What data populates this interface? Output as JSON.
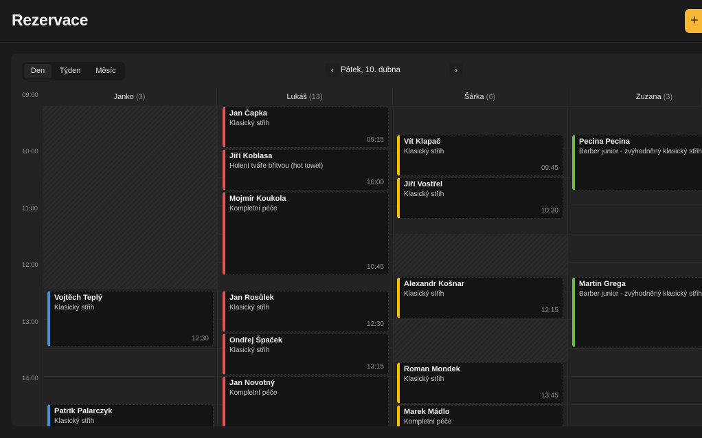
{
  "header": {
    "title": "Rezervace",
    "add_icon": "+"
  },
  "toolbar": {
    "views": [
      "Den",
      "Týden",
      "Měsíc"
    ],
    "active_view": "Den",
    "date": "Pátek, 10. dubna",
    "prev": "‹",
    "next": "›"
  },
  "columns": [
    {
      "name": "Janko",
      "count": "(3)"
    },
    {
      "name": "Lukáš",
      "count": "(13)"
    },
    {
      "name": "Šárka",
      "count": "(6)"
    },
    {
      "name": "Zuzana",
      "count": "(3)"
    }
  ],
  "times": [
    "09:00",
    "10:00",
    "11:00",
    "12:00",
    "13:00",
    "14:00"
  ],
  "colors": {
    "janko": "#4a90d9",
    "lukas": "#e05555",
    "sarka": "#f5c000",
    "zuzana": "#6cb84a",
    "accent": "#f5b731"
  },
  "events": [
    {
      "name": "Jan Čapka",
      "service": "Klasický střih",
      "time": "09:15"
    },
    {
      "name": "Jiří Koblasa",
      "service": "Holení tváře břitvou (hot towel)",
      "time": "10:00"
    },
    {
      "name": "Mojmír Koukola",
      "service": "Kompletní péče",
      "time": "10:45"
    },
    {
      "name": "Jan Rosůlek",
      "service": "Klasický střih",
      "time": "12:30"
    },
    {
      "name": "Ondřej Špaček",
      "service": "Klasický střih",
      "time": "13:15"
    },
    {
      "name": "Jan Novotný",
      "service": "Kompletní péče",
      "time": ""
    },
    {
      "name": "Vojtěch Teplý",
      "service": "Klasický střih",
      "time": "12:30"
    },
    {
      "name": "Patrik Palarczyk",
      "service": "Klasický střih",
      "time": ""
    },
    {
      "name": "Vít Klapač",
      "service": "Klasický střih",
      "time": "09:45"
    },
    {
      "name": "Jiří Vostřel",
      "service": "Klasický střih",
      "time": "10:30"
    },
    {
      "name": "Alexandr Košnar",
      "service": "Klasický střih",
      "time": "12:15"
    },
    {
      "name": "Roman Mondek",
      "service": "Klasický střih",
      "time": "13:45"
    },
    {
      "name": "Marek Mádlo",
      "service": "Kompletní péče",
      "time": ""
    },
    {
      "name": "Pecina Pecina",
      "service": "Barber junior - zvýhodněný klasický střih",
      "time": ""
    },
    {
      "name": "Martin Grega",
      "service": "Barber junior - zvýhodněný klasický střih",
      "time": ""
    }
  ]
}
